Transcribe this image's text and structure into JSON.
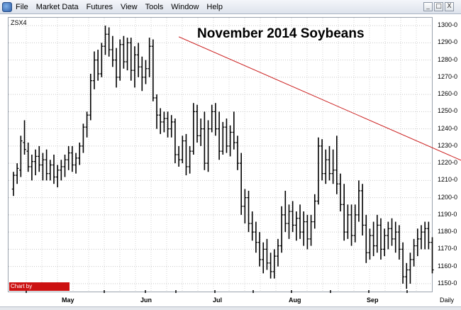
{
  "menu": {
    "items": [
      "File",
      "Market Data",
      "Futures",
      "View",
      "Tools",
      "Window",
      "Help"
    ],
    "window_controls": [
      "_",
      "□",
      "X"
    ]
  },
  "chart": {
    "symbol": "ZSX4",
    "title": "November 2014 Soybeans",
    "watermark": "Chart by PowerSignals.com",
    "interval": "Daily",
    "y_labels": [
      "1300-0",
      "1290-0",
      "1280-0",
      "1270-0",
      "1260-0",
      "1250-0",
      "1240-0",
      "1230-0",
      "1220-0",
      "1210-0",
      "1200-0",
      "1190-0",
      "1180-0",
      "1170-0",
      "1160-0",
      "1150-0"
    ],
    "x_labels": [
      "May",
      "Jun",
      "Jul",
      "Aug",
      "Sep"
    ]
  },
  "chart_data": {
    "type": "ohlc",
    "title": "November 2014 Soybeans",
    "symbol": "ZSX4",
    "ylim": [
      1145,
      1305
    ],
    "y_ticks": [
      1150,
      1160,
      1170,
      1180,
      1190,
      1200,
      1210,
      1220,
      1230,
      1240,
      1250,
      1260,
      1270,
      1280,
      1290,
      1300
    ],
    "x_ticks": [
      "May",
      "Jun",
      "Jul",
      "Aug",
      "Sep"
    ],
    "line_color": "#000000",
    "trendline": {
      "color": "#cc2222",
      "from": [
        45,
        1293.5
      ],
      "to": [
        144,
        1201
      ]
    },
    "bars": [
      [
        1205,
        1215,
        1201,
        1213
      ],
      [
        1213,
        1220,
        1208,
        1217
      ],
      [
        1216,
        1236,
        1212,
        1233
      ],
      [
        1232,
        1245,
        1225,
        1228
      ],
      [
        1227,
        1232,
        1215,
        1218
      ],
      [
        1218,
        1225,
        1210,
        1221
      ],
      [
        1221,
        1228,
        1213,
        1224
      ],
      [
        1224,
        1230,
        1215,
        1219
      ],
      [
        1219,
        1226,
        1210,
        1222
      ],
      [
        1222,
        1228,
        1210,
        1214
      ],
      [
        1214,
        1222,
        1210,
        1219
      ],
      [
        1219,
        1225,
        1208,
        1212
      ],
      [
        1212,
        1219,
        1206,
        1216
      ],
      [
        1216,
        1222,
        1210,
        1218
      ],
      [
        1218,
        1225,
        1212,
        1222
      ],
      [
        1222,
        1230,
        1216,
        1226
      ],
      [
        1226,
        1230,
        1215,
        1219
      ],
      [
        1219,
        1226,
        1214,
        1223
      ],
      [
        1223,
        1232,
        1219,
        1230
      ],
      [
        1230,
        1243,
        1226,
        1241
      ],
      [
        1241,
        1250,
        1235,
        1248
      ],
      [
        1248,
        1272,
        1245,
        1268
      ],
      [
        1268,
        1285,
        1263,
        1280
      ],
      [
        1280,
        1286,
        1268,
        1272
      ],
      [
        1272,
        1290,
        1270,
        1288
      ],
      [
        1288,
        1300,
        1283,
        1295
      ],
      [
        1295,
        1299,
        1282,
        1286
      ],
      [
        1286,
        1294,
        1276,
        1280
      ],
      [
        1280,
        1287,
        1264,
        1270
      ],
      [
        1270,
        1292,
        1268,
        1289
      ],
      [
        1289,
        1294,
        1275,
        1279
      ],
      [
        1279,
        1293,
        1274,
        1290
      ],
      [
        1290,
        1293,
        1268,
        1274
      ],
      [
        1274,
        1288,
        1264,
        1283
      ],
      [
        1283,
        1290,
        1270,
        1276
      ],
      [
        1276,
        1282,
        1262,
        1270
      ],
      [
        1270,
        1280,
        1266,
        1275
      ],
      [
        1275,
        1293,
        1270,
        1288
      ],
      [
        1288,
        1292,
        1256,
        1258
      ],
      [
        1258,
        1260,
        1240,
        1248
      ],
      [
        1248,
        1252,
        1237,
        1244
      ],
      [
        1244,
        1250,
        1238,
        1246
      ],
      [
        1246,
        1250,
        1235,
        1240
      ],
      [
        1240,
        1248,
        1235,
        1244
      ],
      [
        1244,
        1246,
        1220,
        1225
      ],
      [
        1225,
        1230,
        1218,
        1222
      ],
      [
        1222,
        1236,
        1220,
        1233
      ],
      [
        1233,
        1237,
        1213,
        1218
      ],
      [
        1218,
        1230,
        1214,
        1227
      ],
      [
        1227,
        1255,
        1225,
        1250
      ],
      [
        1250,
        1254,
        1232,
        1236
      ],
      [
        1236,
        1246,
        1230,
        1240
      ],
      [
        1240,
        1250,
        1216,
        1220
      ],
      [
        1220,
        1245,
        1215,
        1240
      ],
      [
        1240,
        1254,
        1238,
        1250
      ],
      [
        1250,
        1255,
        1236,
        1240
      ],
      [
        1240,
        1250,
        1222,
        1227
      ],
      [
        1227,
        1244,
        1225,
        1241
      ],
      [
        1241,
        1246,
        1226,
        1230
      ],
      [
        1230,
        1242,
        1224,
        1238
      ],
      [
        1238,
        1250,
        1228,
        1232
      ],
      [
        1232,
        1236,
        1216,
        1220
      ],
      [
        1220,
        1226,
        1190,
        1195
      ],
      [
        1195,
        1205,
        1185,
        1200
      ],
      [
        1200,
        1204,
        1180,
        1185
      ],
      [
        1185,
        1192,
        1175,
        1180
      ],
      [
        1180,
        1186,
        1168,
        1174
      ],
      [
        1174,
        1180,
        1160,
        1164
      ],
      [
        1164,
        1174,
        1156,
        1170
      ],
      [
        1170,
        1176,
        1158,
        1162
      ],
      [
        1162,
        1168,
        1153,
        1157
      ],
      [
        1157,
        1170,
        1153,
        1166
      ],
      [
        1166,
        1176,
        1160,
        1172
      ],
      [
        1172,
        1195,
        1168,
        1190
      ],
      [
        1190,
        1204,
        1180,
        1185
      ],
      [
        1185,
        1196,
        1176,
        1192
      ],
      [
        1192,
        1198,
        1180,
        1184
      ],
      [
        1184,
        1192,
        1175,
        1188
      ],
      [
        1188,
        1196,
        1176,
        1180
      ],
      [
        1180,
        1192,
        1172,
        1186
      ],
      [
        1186,
        1190,
        1170,
        1176
      ],
      [
        1176,
        1190,
        1172,
        1186
      ],
      [
        1186,
        1202,
        1182,
        1198
      ],
      [
        1198,
        1235,
        1196,
        1230
      ],
      [
        1230,
        1234,
        1210,
        1214
      ],
      [
        1214,
        1228,
        1208,
        1222
      ],
      [
        1222,
        1230,
        1210,
        1214
      ],
      [
        1214,
        1228,
        1208,
        1216
      ],
      [
        1216,
        1236,
        1202,
        1208
      ],
      [
        1208,
        1214,
        1192,
        1196
      ],
      [
        1196,
        1208,
        1175,
        1180
      ],
      [
        1180,
        1196,
        1176,
        1190
      ],
      [
        1190,
        1196,
        1172,
        1178
      ],
      [
        1178,
        1196,
        1174,
        1190
      ],
      [
        1190,
        1210,
        1186,
        1204
      ],
      [
        1204,
        1208,
        1178,
        1184
      ],
      [
        1184,
        1190,
        1162,
        1168
      ],
      [
        1168,
        1182,
        1164,
        1178
      ],
      [
        1178,
        1186,
        1166,
        1172
      ],
      [
        1172,
        1190,
        1168,
        1184
      ],
      [
        1184,
        1188,
        1164,
        1170
      ],
      [
        1170,
        1182,
        1166,
        1178
      ],
      [
        1178,
        1186,
        1170,
        1182
      ],
      [
        1182,
        1188,
        1172,
        1176
      ],
      [
        1176,
        1186,
        1168,
        1180
      ],
      [
        1180,
        1184,
        1164,
        1170
      ],
      [
        1170,
        1174,
        1150,
        1154
      ],
      [
        1154,
        1162,
        1147,
        1158
      ],
      [
        1158,
        1168,
        1150,
        1164
      ],
      [
        1164,
        1176,
        1160,
        1172
      ],
      [
        1172,
        1182,
        1166,
        1176
      ],
      [
        1176,
        1184,
        1170,
        1180
      ],
      [
        1180,
        1186,
        1170,
        1182
      ],
      [
        1182,
        1186,
        1170,
        1174
      ],
      [
        1174,
        1177,
        1156,
        1158
      ]
    ]
  }
}
